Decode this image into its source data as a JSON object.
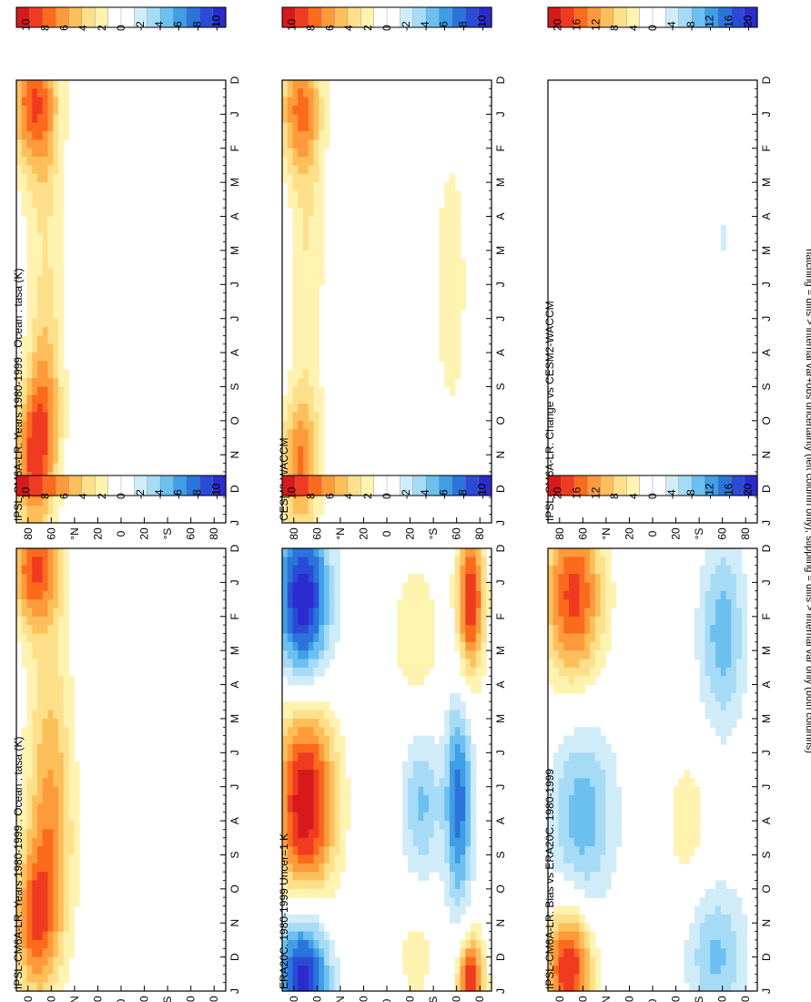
{
  "footer_note": "hatching = diffs > internal var+obs uncertainty (left column only); stippling = diffs > internal var only (both columns)",
  "months": [
    "D",
    "J",
    "F",
    "M",
    "A",
    "M",
    "J",
    "J",
    "A",
    "S",
    "O",
    "N",
    "D",
    "J"
  ],
  "lat_ticks": [
    "80",
    "60",
    "°N",
    "20",
    "0",
    "20",
    "°S",
    "60",
    "80"
  ],
  "colorbar_10": {
    "labels": [
      "10",
      "8",
      "6",
      "4",
      "2",
      "0",
      "-2",
      "-4",
      "-6",
      "-8",
      "-10"
    ],
    "colors": [
      "#d7191c",
      "#f03b20",
      "#fc6a1c",
      "#fd9a3c",
      "#fdbf5a",
      "#fee08b",
      "#fff3b0",
      "#ffffff",
      "#ffffff",
      "#d0ecf8",
      "#a6dbf5",
      "#6cc0f0",
      "#3e9ee6",
      "#2a74dc",
      "#2b4bd6",
      "#2b2bcf"
    ]
  },
  "colorbar_20": {
    "labels": [
      "20",
      "16",
      "12",
      "8",
      "4",
      "0",
      "-4",
      "-8",
      "-12",
      "-16",
      "-20"
    ],
    "colors": [
      "#d7191c",
      "#f03b20",
      "#fc6a1c",
      "#fd9a3c",
      "#fdbf5a",
      "#fee08b",
      "#fff3b0",
      "#ffffff",
      "#ffffff",
      "#d0ecf8",
      "#a6dbf5",
      "#6cc0f0",
      "#3e9ee6",
      "#2a74dc",
      "#2b4bd6",
      "#2b2bcf"
    ]
  },
  "panels": [
    {
      "id": "p1",
      "title": "IPSL-CM6A-LR: Years 1980-1999 : Ocean : tasa (K)"
    },
    {
      "id": "p2",
      "title": "IPSL-CM6A-LR: Years 1980-1999 : Ocean : tasa (K)"
    },
    {
      "id": "p3",
      "title": "ERA20C: 1980-1999 Uncer=1 K"
    },
    {
      "id": "p4",
      "title": "CESM2-WACCM"
    },
    {
      "id": "p5",
      "title": "IPSL-CM6A-LR: Bias vs ERA20C: 1980-1999"
    },
    {
      "id": "p6",
      "title": "IPSL-CM6A-LR: Change vs CESM2-WACCM"
    }
  ],
  "chart_data": [
    {
      "type": "heatmap",
      "panel": "p1",
      "title": "IPSL-CM6A-LR: Years 1980-1999 : Ocean : tasa (K)",
      "x_axis": "month (D..J)",
      "y_axis": "latitude (80N..80S)",
      "clim": [
        -10,
        10
      ],
      "blobs": [
        {
          "m": 0.6,
          "lat": 75,
          "sm": 1.2,
          "slat": 14,
          "v": 7
        },
        {
          "m": 11,
          "lat": 75,
          "sm": 1.5,
          "slat": 12,
          "v": 6
        },
        {
          "m": 5.5,
          "lat": 62,
          "sm": 4,
          "slat": 14,
          "v": 3
        },
        {
          "m": 9,
          "lat": 60,
          "sm": 2.5,
          "slat": 14,
          "v": 3.5
        }
      ]
    },
    {
      "type": "heatmap",
      "panel": "p2",
      "title": "IPSL-CM6A-LR: Years 1980-1999 : Ocean : tasa (K)",
      "x_axis": "month (D..J)",
      "y_axis": "latitude (80N..80S)",
      "clim": [
        -10,
        10
      ],
      "blobs": [
        {
          "m": 0.6,
          "lat": 75,
          "sm": 1.5,
          "slat": 14,
          "v": 7
        },
        {
          "m": 11.2,
          "lat": 75,
          "sm": 1.5,
          "slat": 12,
          "v": 7
        },
        {
          "m": 5.5,
          "lat": 65,
          "sm": 4,
          "slat": 12,
          "v": 2.5
        },
        {
          "m": 9.3,
          "lat": 65,
          "sm": 1.5,
          "slat": 10,
          "v": 3
        }
      ]
    },
    {
      "type": "heatmap",
      "panel": "p3",
      "title": "ERA20C: 1980-1999 Uncer=1 K",
      "x_axis": "month (D..J)",
      "y_axis": "latitude (80N..80S)",
      "clim": [
        -10,
        10
      ],
      "blobs": [
        {
          "m": 1.5,
          "lat": 72,
          "sm": 1.8,
          "slat": 16,
          "v": -10
        },
        {
          "m": 12.6,
          "lat": 72,
          "sm": 1.5,
          "slat": 16,
          "v": -10
        },
        {
          "m": 7.5,
          "lat": 70,
          "sm": 2.2,
          "slat": 18,
          "v": 10
        },
        {
          "m": 1.5,
          "lat": -72,
          "sm": 1.6,
          "slat": 8,
          "v": 9
        },
        {
          "m": 12.8,
          "lat": -72,
          "sm": 1,
          "slat": 8,
          "v": 9
        },
        {
          "m": 7.5,
          "lat": -62,
          "sm": 2.2,
          "slat": 8,
          "v": -7
        },
        {
          "m": 7.5,
          "lat": -30,
          "sm": 1.5,
          "slat": 12,
          "v": -4
        },
        {
          "m": 2.5,
          "lat": -25,
          "sm": 1.5,
          "slat": 14,
          "v": 2.5
        },
        {
          "m": 12,
          "lat": -25,
          "sm": 1,
          "slat": 12,
          "v": 2
        }
      ]
    },
    {
      "type": "heatmap",
      "panel": "p4",
      "title": "CESM2-WACCM",
      "x_axis": "month (D..J)",
      "y_axis": "latitude (80N..80S)",
      "clim": [
        -10,
        10
      ],
      "blobs": [
        {
          "m": 0.8,
          "lat": 75,
          "sm": 1.4,
          "slat": 13,
          "v": 6
        },
        {
          "m": 11.3,
          "lat": 75,
          "sm": 1.4,
          "slat": 12,
          "v": 6
        },
        {
          "m": 5.5,
          "lat": 68,
          "sm": 3.5,
          "slat": 10,
          "v": 2.5
        },
        {
          "m": 6,
          "lat": -55,
          "sm": 3,
          "slat": 10,
          "v": 2.2
        }
      ]
    },
    {
      "type": "heatmap",
      "panel": "p5",
      "title": "IPSL-CM6A-LR: Bias vs ERA20C: 1980-1999",
      "x_axis": "month (D..J)",
      "y_axis": "latitude (80N..80S)",
      "clim": [
        -20,
        20
      ],
      "blobs": [
        {
          "m": 1.4,
          "lat": 68,
          "sm": 1.8,
          "slat": 18,
          "v": 16
        },
        {
          "m": 12.3,
          "lat": 72,
          "sm": 1.2,
          "slat": 14,
          "v": 18
        },
        {
          "m": 7.8,
          "lat": 60,
          "sm": 2,
          "slat": 20,
          "v": -9
        },
        {
          "m": 2.5,
          "lat": -60,
          "sm": 2,
          "slat": 14,
          "v": -9
        },
        {
          "m": 12,
          "lat": -55,
          "sm": 1.5,
          "slat": 18,
          "v": -8
        },
        {
          "m": 8,
          "lat": -30,
          "sm": 1.5,
          "slat": 14,
          "v": 4
        }
      ]
    },
    {
      "type": "heatmap",
      "panel": "p6",
      "title": "IPSL-CM6A-LR: Change vs CESM2-WACCM",
      "x_axis": "month (D..J)",
      "y_axis": "latitude (80N..80S)",
      "clim": [
        -20,
        20
      ],
      "blobs": [
        {
          "m": 4.6,
          "lat": -62,
          "sm": 0.8,
          "slat": 4,
          "v": -3
        },
        {
          "m": 9.5,
          "lat": 65,
          "sm": 0.4,
          "slat": 5,
          "v": 2.5
        }
      ]
    }
  ]
}
